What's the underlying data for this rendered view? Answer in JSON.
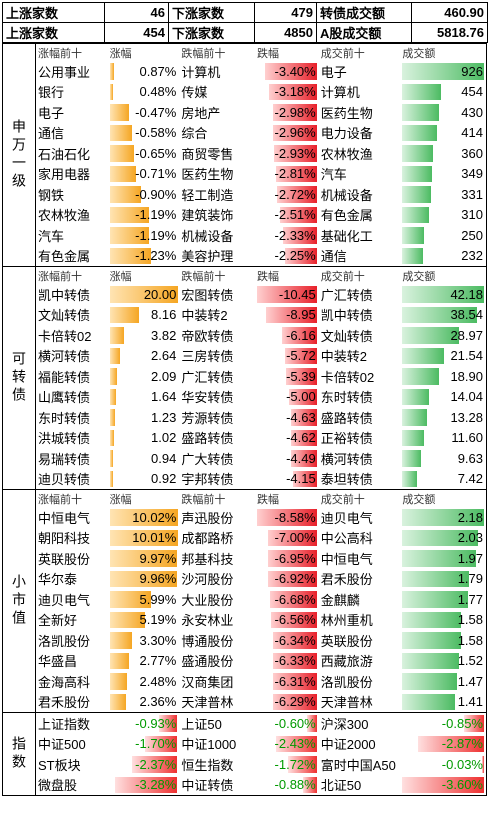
{
  "summary": {
    "rows": [
      [
        {
          "label": "上涨家数",
          "value": "46"
        },
        {
          "label": "下涨家数",
          "value": "479"
        },
        {
          "label": "转债成交额",
          "value": "460.90"
        }
      ],
      [
        {
          "label": "上涨家数",
          "value": "454"
        },
        {
          "label": "下涨家数",
          "value": "4850"
        },
        {
          "label": "A股成交额",
          "value": "5818.76"
        }
      ]
    ]
  },
  "shenwan": {
    "label": "申万一级",
    "headers": [
      "涨幅前十",
      "涨幅",
      "跌幅前十",
      "跌幅",
      "成交前十",
      "成交额"
    ],
    "rows": [
      {
        "n1": "公用事业",
        "v1": "0.87%",
        "f1": 0.06,
        "n2": "计算机",
        "v2": "-3.40%",
        "f2": 0.86,
        "n3": "电子",
        "v3": "926",
        "f3": 1.0
      },
      {
        "n1": "银行",
        "v1": "0.48%",
        "f1": 0.05,
        "n2": "传媒",
        "v2": "-3.18%",
        "f2": 0.8,
        "n3": "计算机",
        "v3": "454",
        "f3": 0.48
      },
      {
        "n1": "电子",
        "v1": "-0.47%",
        "f1": 0.28,
        "n2": "房地产",
        "v2": "-2.98%",
        "f2": 0.74,
        "n3": "医药生物",
        "v3": "430",
        "f3": 0.45
      },
      {
        "n1": "通信",
        "v1": "-0.58%",
        "f1": 0.32,
        "n2": "综合",
        "v2": "-2.96%",
        "f2": 0.73,
        "n3": "电力设备",
        "v3": "414",
        "f3": 0.43
      },
      {
        "n1": "石油石化",
        "v1": "-0.65%",
        "f1": 0.36,
        "n2": "商贸零售",
        "v2": "-2.93%",
        "f2": 0.72,
        "n3": "农林牧渔",
        "v3": "360",
        "f3": 0.38
      },
      {
        "n1": "家用电器",
        "v1": "-0.71%",
        "f1": 0.38,
        "n2": "医药生物",
        "v2": "-2.81%",
        "f2": 0.69,
        "n3": "汽车",
        "v3": "349",
        "f3": 0.37
      },
      {
        "n1": "钢铁",
        "v1": "-0.90%",
        "f1": 0.45,
        "n2": "轻工制造",
        "v2": "-2.72%",
        "f2": 0.67,
        "n3": "机械设备",
        "v3": "331",
        "f3": 0.35
      },
      {
        "n1": "农林牧渔",
        "v1": "-1.19%",
        "f1": 0.58,
        "n2": "建筑装饰",
        "v2": "-2.51%",
        "f2": 0.61,
        "n3": "有色金属",
        "v3": "310",
        "f3": 0.33
      },
      {
        "n1": "汽车",
        "v1": "-1.19%",
        "f1": 0.58,
        "n2": "机械设备",
        "v2": "-2.33%",
        "f2": 0.56,
        "n3": "基础化工",
        "v3": "250",
        "f3": 0.27
      },
      {
        "n1": "有色金属",
        "v1": "-1.23%",
        "f1": 0.6,
        "n2": "美容护理",
        "v2": "-2.25%",
        "f2": 0.54,
        "n3": "通信",
        "v3": "232",
        "f3": 0.25
      }
    ]
  },
  "convertible": {
    "label": "可转债",
    "headers": [
      "涨幅前十",
      "涨幅",
      "跌幅前十",
      "跌幅",
      "成交前十",
      "成交额"
    ],
    "rows": [
      {
        "n1": "凯中转债",
        "v1": "20.00",
        "f1": 1.0,
        "n2": "宏图转债",
        "v2": "-10.45",
        "f2": 1.0,
        "n3": "广汇转债",
        "v3": "42.18",
        "f3": 1.0
      },
      {
        "n1": "文灿转债",
        "v1": "8.16",
        "f1": 0.42,
        "n2": "中装转2",
        "v2": "-8.95",
        "f2": 0.85,
        "n3": "凯中转债",
        "v3": "38.54",
        "f3": 0.91
      },
      {
        "n1": "卡倍转02",
        "v1": "3.82",
        "f1": 0.2,
        "n2": "帝欧转债",
        "v2": "-6.16",
        "f2": 0.58,
        "n3": "文灿转债",
        "v3": "28.97",
        "f3": 0.69
      },
      {
        "n1": "横河转债",
        "v1": "2.64",
        "f1": 0.14,
        "n2": "三房转债",
        "v2": "-5.72",
        "f2": 0.54,
        "n3": "中装转2",
        "v3": "21.54",
        "f3": 0.51
      },
      {
        "n1": "福能转债",
        "v1": "2.09",
        "f1": 0.11,
        "n2": "广汇转债",
        "v2": "-5.39",
        "f2": 0.51,
        "n3": "卡倍转02",
        "v3": "18.90",
        "f3": 0.45
      },
      {
        "n1": "山鹰转债",
        "v1": "1.64",
        "f1": 0.09,
        "n2": "华安转债",
        "v2": "-5.00",
        "f2": 0.47,
        "n3": "东时转债",
        "v3": "14.04",
        "f3": 0.33
      },
      {
        "n1": "东时转债",
        "v1": "1.23",
        "f1": 0.07,
        "n2": "芳源转债",
        "v2": "-4.63",
        "f2": 0.44,
        "n3": "盛路转债",
        "v3": "13.28",
        "f3": 0.31
      },
      {
        "n1": "洪城转债",
        "v1": "1.02",
        "f1": 0.06,
        "n2": "盛路转债",
        "v2": "-4.62",
        "f2": 0.44,
        "n3": "正裕转债",
        "v3": "11.60",
        "f3": 0.27
      },
      {
        "n1": "易瑞转债",
        "v1": "0.94",
        "f1": 0.05,
        "n2": "广大转债",
        "v2": "-4.49",
        "f2": 0.43,
        "n3": "横河转债",
        "v3": "9.63",
        "f3": 0.23
      },
      {
        "n1": "迪贝转债",
        "v1": "0.92",
        "f1": 0.05,
        "n2": "宇邦转债",
        "v2": "-4.15",
        "f2": 0.4,
        "n3": "泰坦转债",
        "v3": "7.42",
        "f3": 0.18
      }
    ]
  },
  "smallcap": {
    "label": "小市值",
    "headers": [
      "涨幅前十",
      "涨幅",
      "跌幅前十",
      "跌幅",
      "成交前十",
      "成交额"
    ],
    "rows": [
      {
        "n1": "中恒电气",
        "v1": "10.02%",
        "f1": 1.0,
        "n2": "声迅股份",
        "v2": "-8.58%",
        "f2": 1.0,
        "n3": "迪贝电气",
        "v3": "2.18",
        "f3": 1.0
      },
      {
        "n1": "朝阳科技",
        "v1": "10.01%",
        "f1": 1.0,
        "n2": "成都路桥",
        "v2": "-7.00%",
        "f2": 0.82,
        "n3": "中公高科",
        "v3": "2.03",
        "f3": 0.93
      },
      {
        "n1": "英联股份",
        "v1": "9.97%",
        "f1": 0.99,
        "n2": "邦基科技",
        "v2": "-6.95%",
        "f2": 0.81,
        "n3": "中恒电气",
        "v3": "1.97",
        "f3": 0.9
      },
      {
        "n1": "华尔泰",
        "v1": "9.96%",
        "f1": 0.99,
        "n2": "沙河股份",
        "v2": "-6.92%",
        "f2": 0.81,
        "n3": "君禾股份",
        "v3": "1.79",
        "f3": 0.82
      },
      {
        "n1": "迪贝电气",
        "v1": "5.99%",
        "f1": 0.6,
        "n2": "大业股份",
        "v2": "-6.68%",
        "f2": 0.78,
        "n3": "金麒麟",
        "v3": "1.77",
        "f3": 0.81
      },
      {
        "n1": "全新好",
        "v1": "5.19%",
        "f1": 0.52,
        "n2": "永安林业",
        "v2": "-6.56%",
        "f2": 0.76,
        "n3": "林州重机",
        "v3": "1.58",
        "f3": 0.72
      },
      {
        "n1": "洛凯股份",
        "v1": "3.30%",
        "f1": 0.33,
        "n2": "博通股份",
        "v2": "-6.34%",
        "f2": 0.74,
        "n3": "英联股份",
        "v3": "1.58",
        "f3": 0.72
      },
      {
        "n1": "华盛昌",
        "v1": "2.77%",
        "f1": 0.28,
        "n2": "盛通股份",
        "v2": "-6.33%",
        "f2": 0.74,
        "n3": "西藏旅游",
        "v3": "1.52",
        "f3": 0.7
      },
      {
        "n1": "金海高科",
        "v1": "2.48%",
        "f1": 0.25,
        "n2": "汉商集团",
        "v2": "-6.31%",
        "f2": 0.74,
        "n3": "洛凯股份",
        "v3": "1.47",
        "f3": 0.67
      },
      {
        "n1": "君禾股份",
        "v1": "2.36%",
        "f1": 0.24,
        "n2": "天津普林",
        "v2": "-6.29%",
        "f2": 0.73,
        "n3": "天津普林",
        "v3": "1.41",
        "f3": 0.65
      }
    ]
  },
  "indices": {
    "label": "指数",
    "rows": [
      {
        "n1": "上证指数",
        "v1": "-0.93%",
        "f1": 0.26,
        "n2": "上证50",
        "v2": "-0.60%",
        "f2": 0.17,
        "n3": "沪深300",
        "v3": "-0.85%",
        "f3": 0.24
      },
      {
        "n1": "中证500",
        "v1": "-1.70%",
        "f1": 0.47,
        "n2": "中证1000",
        "v2": "-2.43%",
        "f2": 0.68,
        "n3": "中证2000",
        "v3": "-2.87%",
        "f3": 0.8
      },
      {
        "n1": "ST板块",
        "v1": "-2.37%",
        "f1": 0.66,
        "n2": "恒生指数",
        "v2": "-1.72%",
        "f2": 0.48,
        "n3": "富时中国A50",
        "v3": "-0.03%",
        "f3": 0.02
      },
      {
        "n1": "微盘股",
        "v1": "-3.28%",
        "f1": 0.91,
        "n2": "中证转债",
        "v2": "-0.88%",
        "f2": 0.24,
        "n3": "北证50",
        "v3": "-3.60%",
        "f3": 1.0
      }
    ]
  }
}
